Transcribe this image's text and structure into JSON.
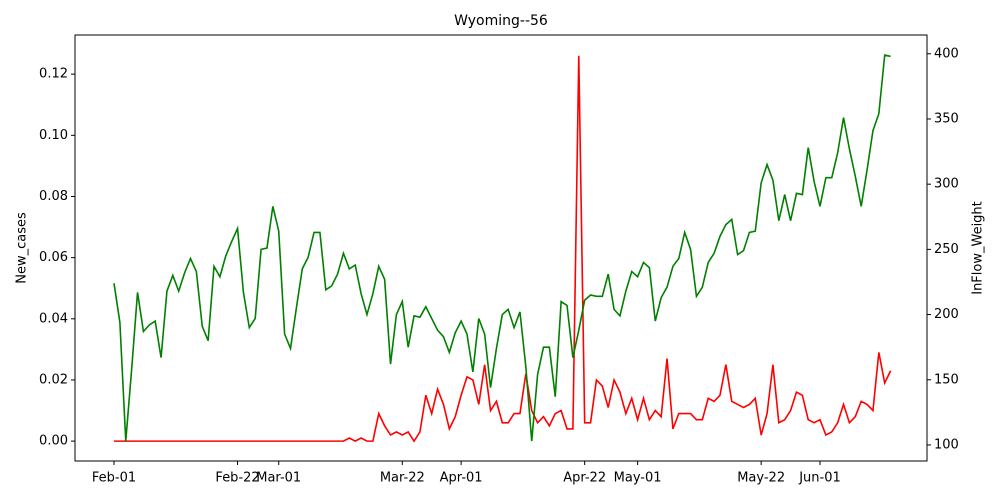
{
  "chart_data": {
    "type": "line",
    "title": "Wyoming--56",
    "y_label": "New_cases",
    "y2_label": "InFlow_Weight",
    "categories": [
      "Feb-01",
      null,
      null,
      null,
      null,
      null,
      null,
      null,
      null,
      null,
      null,
      null,
      null,
      null,
      null,
      null,
      null,
      null,
      null,
      null,
      null,
      "Feb-22",
      null,
      null,
      null,
      null,
      null,
      null,
      "Mar-01",
      null,
      null,
      null,
      null,
      null,
      null,
      null,
      null,
      null,
      null,
      null,
      null,
      null,
      null,
      null,
      null,
      null,
      null,
      null,
      null,
      "Mar-22",
      null,
      null,
      null,
      null,
      null,
      null,
      null,
      null,
      null,
      "Apr-01",
      null,
      null,
      null,
      null,
      null,
      null,
      null,
      null,
      null,
      null,
      null,
      null,
      null,
      null,
      null,
      null,
      null,
      null,
      null,
      null,
      "Apr-22",
      null,
      null,
      null,
      null,
      null,
      null,
      null,
      null,
      "May-01",
      null,
      null,
      null,
      null,
      null,
      null,
      null,
      null,
      null,
      null,
      null,
      null,
      null,
      null,
      null,
      null,
      null,
      null,
      null,
      null,
      "May-22",
      null,
      null,
      null,
      null,
      null,
      null,
      null,
      null,
      null,
      "Jun-01",
      null,
      null,
      null,
      null,
      null,
      null,
      null,
      null,
      null,
      null,
      null,
      null
    ],
    "series": [
      {
        "name": "New_cases",
        "color": "#ff0000",
        "values": [
          0,
          0,
          0,
          0,
          0,
          0,
          0,
          0,
          0,
          0,
          0,
          0,
          0,
          0,
          0,
          0,
          0,
          0,
          0,
          0,
          0,
          0,
          0,
          0,
          0,
          0,
          0,
          0,
          0,
          0,
          0,
          0,
          0,
          0,
          0,
          0,
          0,
          0,
          0,
          0,
          0.001,
          0,
          0.001,
          0,
          0,
          0.009,
          0.005,
          0.002,
          0.003,
          0.002,
          0.003,
          0,
          0.003,
          0.015,
          0.009,
          0.017,
          0.012,
          0.004,
          0.008,
          0.015,
          0.021,
          0.02,
          0.012,
          0.025,
          0.01,
          0.013,
          0.006,
          0.006,
          0.009,
          0.009,
          0.022,
          0.01,
          0.006,
          0.008,
          0.005,
          0.009,
          0.01,
          0.004,
          0.004,
          0.126,
          0.006,
          0.006,
          0.02,
          0.018,
          0.011,
          0.02,
          0.016,
          0.009,
          0.014,
          0.007,
          0.014,
          0.007,
          0.01,
          0.008,
          0.027,
          0.004,
          0.009,
          0.009,
          0.009,
          0.007,
          0.007,
          0.014,
          0.013,
          0.015,
          0.025,
          0.013,
          0.012,
          0.011,
          0.012,
          0.014,
          0.002,
          0.009,
          0.025,
          0.006,
          0.007,
          0.01,
          0.016,
          0.015,
          0.007,
          0.006,
          0.007,
          0.002,
          0.003,
          0.006,
          0.012,
          0.006,
          0.008,
          0.013,
          0.012,
          0.01,
          0.029,
          0.019,
          0.023
        ]
      },
      {
        "name": "InFlow_Weight",
        "color": "#008000",
        "axis": "y2",
        "values": [
          224,
          194,
          103,
          158,
          217,
          187,
          192,
          195,
          167,
          218,
          230,
          218,
          232,
          243,
          233,
          191,
          180,
          237,
          229,
          245,
          256,
          266,
          217,
          190,
          197,
          250,
          251,
          283,
          264,
          185,
          174,
          205,
          235,
          244,
          263,
          263,
          219,
          222,
          231,
          247,
          235,
          238,
          216,
          200,
          216,
          237,
          227,
          162,
          200,
          210,
          175,
          199,
          198,
          206,
          197,
          188,
          183,
          171,
          186,
          195,
          185,
          156,
          197,
          185,
          144,
          174,
          200,
          204,
          190,
          202,
          160,
          103,
          154,
          175,
          175,
          137,
          210,
          207,
          167,
          188,
          211,
          215,
          214,
          214,
          231,
          204,
          199,
          218,
          233,
          229,
          240,
          236,
          195,
          213,
          221,
          237,
          243,
          263,
          250,
          214,
          221,
          240,
          247,
          260,
          269,
          273,
          246,
          249,
          263,
          264,
          301,
          315,
          303,
          272,
          292,
          272,
          293,
          292,
          328,
          302,
          283,
          305,
          305,
          324,
          351,
          327,
          306,
          283,
          311,
          341,
          354,
          399,
          398
        ]
      }
    ],
    "ylim": [
      -0.0065,
      0.1328
    ],
    "yticks": [
      {
        "value": 0,
        "label": "0.00"
      },
      {
        "value": 0.02,
        "label": "0.02"
      },
      {
        "value": 0.04,
        "label": "0.04"
      },
      {
        "value": 0.06,
        "label": "0.06"
      },
      {
        "value": 0.08,
        "label": "0.08"
      },
      {
        "value": 0.1,
        "label": "0.10"
      },
      {
        "value": 0.12,
        "label": "0.12"
      }
    ],
    "y2lim": [
      87.7,
      414.4
    ],
    "y2ticks": [
      100,
      150,
      200,
      250,
      300,
      350,
      400
    ],
    "grid": false
  }
}
